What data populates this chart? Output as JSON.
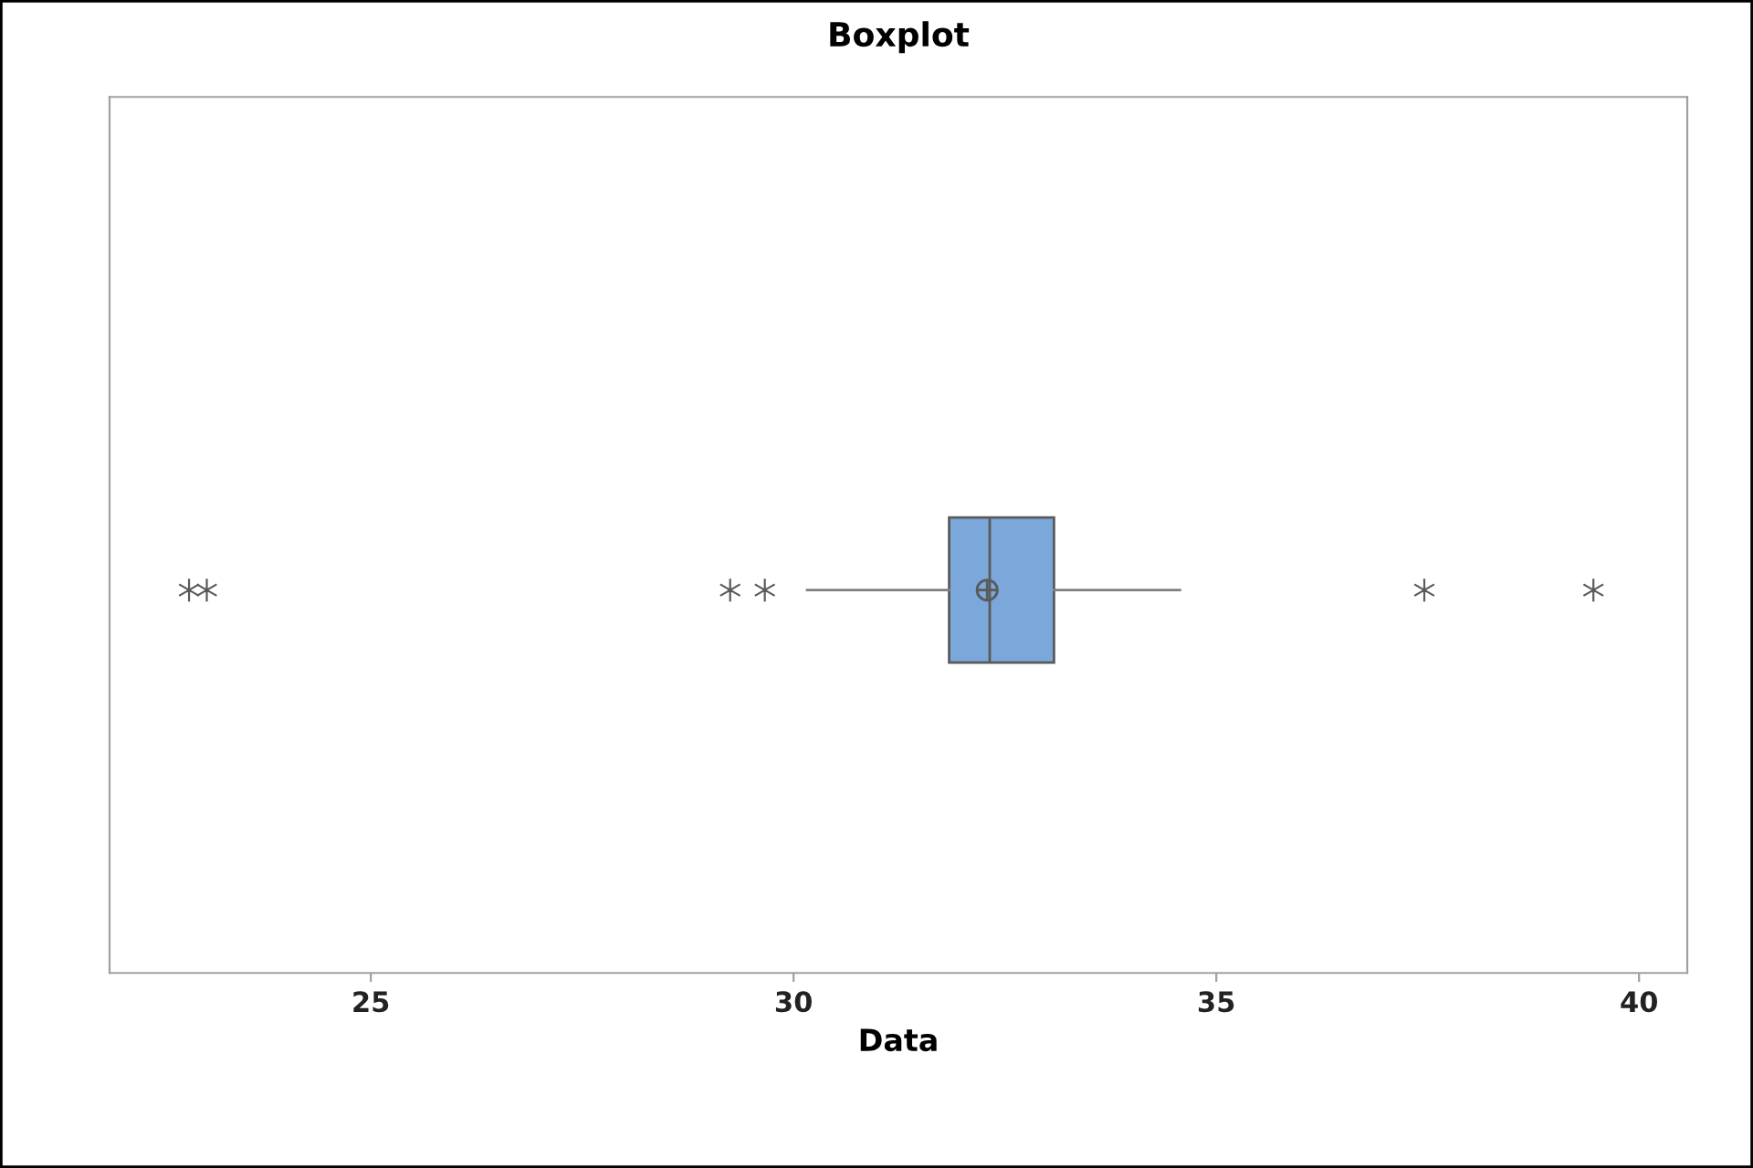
{
  "chart_data": {
    "type": "box",
    "title": "Boxplot",
    "xlabel": "Data",
    "orientation": "horizontal",
    "categories": [
      null
    ],
    "boxes": [
      {
        "low": 30.16,
        "q1": 31.84,
        "median": 32.32,
        "q3": 33.08,
        "high": 34.57,
        "mean": 32.29,
        "outliers": [
          22.85,
          23.06,
          29.25,
          29.66,
          37.46,
          39.46
        ]
      }
    ],
    "color": "#7ba7da",
    "xlim": [
      21.91,
      40.57
    ],
    "xticks": [
      25,
      30,
      35,
      40
    ],
    "tick_labels": "x",
    "grid": false
  }
}
